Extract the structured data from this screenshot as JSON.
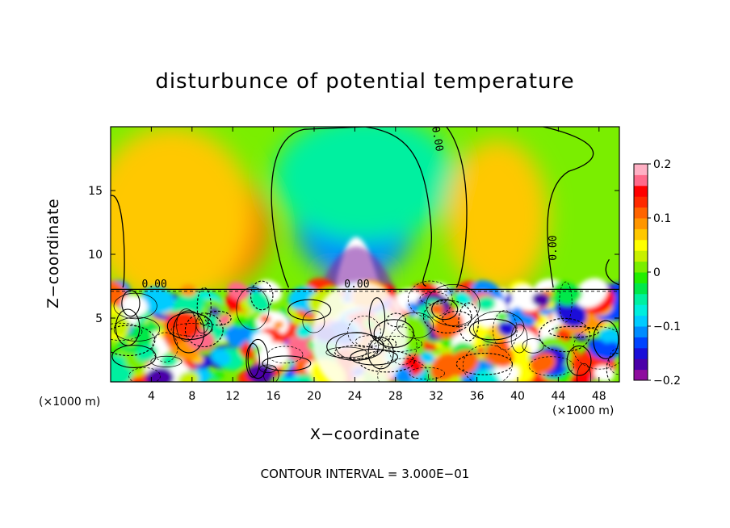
{
  "chart_data": {
    "type": "heatmap",
    "title": "disturbunce of potential temperature",
    "xlabel": "X−coordinate",
    "ylabel": "Z−coordinate",
    "x_unit": "(×1000 m)",
    "z_unit": "(×1000 m)",
    "xlim": [
      0,
      50
    ],
    "ylim": [
      0,
      20
    ],
    "x_ticks": [
      4,
      8,
      12,
      16,
      20,
      24,
      28,
      32,
      36,
      40,
      44,
      48
    ],
    "y_ticks": [
      5,
      10,
      15
    ],
    "colorbar": {
      "range": [
        -0.2,
        0.2
      ],
      "ticks": [
        0.2,
        0.1,
        0,
        -0.1,
        -0.2
      ],
      "tick_labels": [
        "0.2",
        "0.1",
        "0",
        "−0.1",
        "−0.2"
      ],
      "colors": [
        "#8e0d9e",
        "#4b00a8",
        "#1a0fd8",
        "#0044ff",
        "#008cff",
        "#00ccff",
        "#00eedd",
        "#00f0a0",
        "#00e84a",
        "#22ee00",
        "#7aee00",
        "#c8f000",
        "#ffff00",
        "#ffc800",
        "#ff9600",
        "#ff6400",
        "#ff2a00",
        "#ff0000",
        "#ff6a8a",
        "#ffb0c4"
      ]
    },
    "contour_labels": [
      "0.00",
      "0.00",
      "0.00",
      "0.00"
    ],
    "contour_interval_text": "CONTOUR INTERVAL = 3.000E−01",
    "upper_field_blobs": [
      {
        "x": 9.5,
        "z": 12,
        "value": 0.12,
        "rx": 6,
        "rz": 5
      },
      {
        "x": 6,
        "z": 13,
        "value": 0.06,
        "rx": 8,
        "rz": 7
      },
      {
        "x": 24,
        "z": 10,
        "value": -0.2,
        "rx": 3,
        "rz": 4
      },
      {
        "x": 24,
        "z": 13,
        "value": -0.12,
        "rx": 6,
        "rz": 5
      },
      {
        "x": 25,
        "z": 16,
        "value": -0.06,
        "rx": 9,
        "rz": 5
      },
      {
        "x": 38.5,
        "z": 10,
        "value": 0.12,
        "rx": 3.5,
        "rz": 3
      },
      {
        "x": 38,
        "z": 13,
        "value": 0.06,
        "rx": 5,
        "rz": 6
      }
    ],
    "lower_field": {
      "z_top": 7.2,
      "value_range": [
        -0.2,
        0.2
      ],
      "character": "turbulent"
    }
  }
}
